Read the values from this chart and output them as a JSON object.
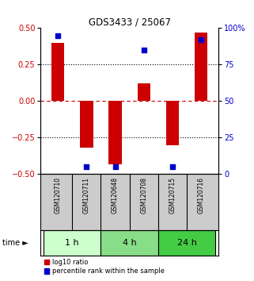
{
  "title": "GDS3433 / 25067",
  "samples": [
    "GSM120710",
    "GSM120711",
    "GSM120648",
    "GSM120708",
    "GSM120715",
    "GSM120716"
  ],
  "log10_ratio": [
    0.4,
    -0.32,
    -0.43,
    0.12,
    -0.3,
    0.47
  ],
  "percentile_rank": [
    0.95,
    0.05,
    0.05,
    0.85,
    0.05,
    0.92
  ],
  "bar_color": "#cc0000",
  "dot_color": "#0000cc",
  "ylim": [
    -0.5,
    0.5
  ],
  "y2lim": [
    0,
    100
  ],
  "yticks": [
    -0.5,
    -0.25,
    0,
    0.25,
    0.5
  ],
  "y2ticks": [
    0,
    25,
    50,
    75,
    100
  ],
  "dotted_lines_black": [
    -0.25,
    0.25
  ],
  "zero_line_color": "#cc0000",
  "time_groups": [
    {
      "label": "1 h",
      "start": 0,
      "end": 2,
      "color": "#ccffcc"
    },
    {
      "label": "4 h",
      "start": 2,
      "end": 4,
      "color": "#88dd88"
    },
    {
      "label": "24 h",
      "start": 4,
      "end": 6,
      "color": "#44cc44"
    }
  ],
  "legend_items": [
    {
      "label": "log10 ratio",
      "color": "#cc0000"
    },
    {
      "label": "percentile rank within the sample",
      "color": "#0000cc"
    }
  ],
  "sample_box_color": "#cccccc",
  "bar_width": 0.45
}
